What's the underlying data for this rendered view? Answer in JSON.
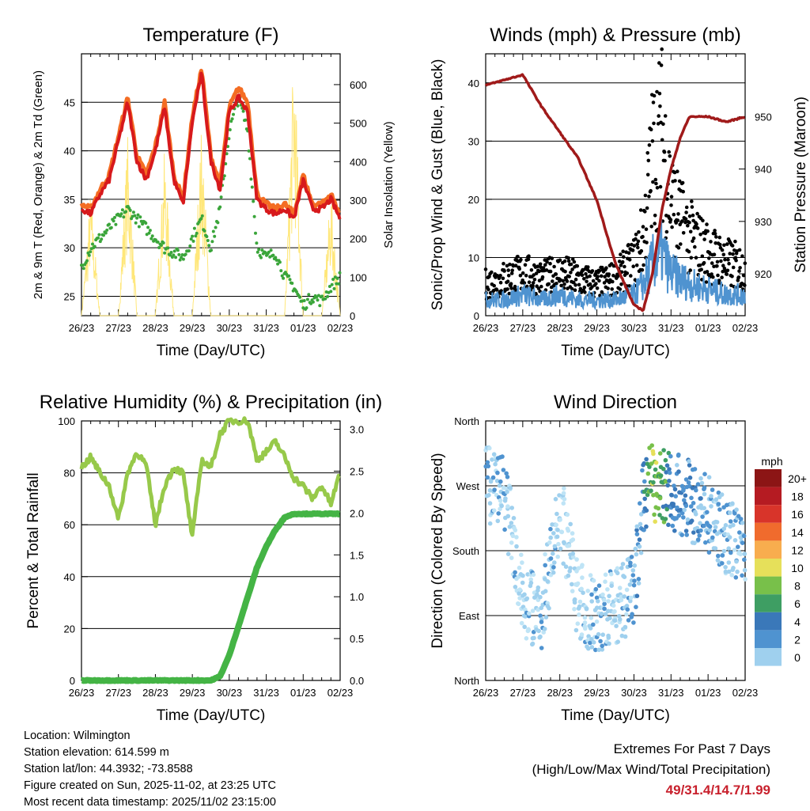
{
  "x_tick_labels": [
    "26/23",
    "27/23",
    "28/23",
    "29/23",
    "30/23",
    "31/23",
    "01/23",
    "02/23"
  ],
  "colors": {
    "temp_2m": "#d7191c",
    "temp_9m": "#f46d23",
    "dewpoint": "#3aa53a",
    "solar": "#ffe77a",
    "gust": "#000000",
    "wind": "#4f93d0",
    "pressure": "#a01a1a",
    "rh": "#97c94a",
    "precip": "#44b445"
  },
  "chart_data": [
    {
      "type": "line",
      "title": "Temperature (F)",
      "xlabel": "Time (Day/UTC)",
      "ylabel": "2m & 9m T (Red, Orange) & 2m Td (Green)",
      "y2label": "Solar Insolation (Yellow)",
      "ylim": [
        23,
        50
      ],
      "y_ticks": [
        25,
        30,
        35,
        40,
        45
      ],
      "y2lim": [
        0,
        680
      ],
      "y2_ticks": [
        0,
        100,
        200,
        300,
        400,
        500,
        600
      ],
      "x": [
        0,
        0.25,
        0.5,
        0.75,
        1,
        1.25,
        1.5,
        1.75,
        2,
        2.25,
        2.5,
        2.75,
        3,
        3.25,
        3.5,
        3.75,
        4,
        4.25,
        4.5,
        4.75,
        5,
        5.25,
        5.5,
        5.75,
        6,
        6.25,
        6.5,
        6.75,
        7
      ],
      "series": [
        {
          "name": "2m T",
          "values": [
            34,
            33.5,
            35.5,
            37,
            41,
            45,
            39,
            37,
            40,
            44.5,
            37,
            34.5,
            43,
            48,
            39,
            36,
            44,
            45.5,
            44,
            35,
            34,
            33.5,
            34,
            33,
            37,
            34,
            34,
            35,
            33
          ]
        },
        {
          "name": "9m T",
          "values": [
            34.5,
            34,
            36,
            37.5,
            41.5,
            45.5,
            39.5,
            37.5,
            40.5,
            45,
            37.5,
            35,
            43.5,
            48.5,
            39.5,
            36.5,
            44.5,
            46.5,
            45,
            35.5,
            34.5,
            34,
            34.5,
            33.5,
            37.5,
            34.5,
            34.5,
            35.5,
            33.5
          ]
        },
        {
          "name": "2m Td",
          "values": [
            28,
            30,
            31,
            32,
            33,
            34,
            33,
            32,
            31,
            30,
            29.5,
            29,
            31,
            33,
            30,
            34,
            42,
            45.5,
            42,
            30,
            29,
            29.5,
            27,
            26,
            24,
            25,
            24.5,
            26,
            27
          ]
        },
        {
          "name": "Solar",
          "values": [
            0,
            300,
            0,
            0,
            0,
            430,
            0,
            0,
            0,
            400,
            0,
            0,
            0,
            460,
            0,
            0,
            0,
            0,
            0,
            0,
            0,
            0,
            0,
            650,
            0,
            0,
            0,
            300,
            0
          ]
        }
      ]
    },
    {
      "type": "line",
      "title": "Winds (mph) & Pressure (mb)",
      "xlabel": "Time (Day/UTC)",
      "ylabel": "Sonic/Prop Wind & Gust (Blue, Black)",
      "y2label": "Station Pressure (Maroon)",
      "ylim": [
        0,
        45
      ],
      "y_ticks": [
        0,
        10,
        20,
        30,
        40
      ],
      "y2lim": [
        912,
        962
      ],
      "y2_ticks": [
        920,
        930,
        940,
        950
      ],
      "x": [
        0,
        0.5,
        1,
        1.5,
        2,
        2.5,
        3,
        3.5,
        4,
        4.25,
        4.5,
        4.75,
        5,
        5.25,
        5.5,
        6,
        6.5,
        7
      ],
      "series": [
        {
          "name": "Gust",
          "values": [
            6,
            7,
            8,
            7,
            8,
            7,
            6,
            7,
            10,
            15,
            30,
            35,
            22,
            18,
            15,
            12,
            10,
            9
          ]
        },
        {
          "name": "Wind",
          "values": [
            3,
            3,
            4,
            3,
            4,
            3,
            3,
            3,
            4,
            6,
            10,
            12,
            8,
            7,
            6,
            5,
            4,
            4
          ]
        },
        {
          "name": "Pressure",
          "values": [
            956,
            957,
            958,
            952,
            947,
            942,
            934,
            922,
            914,
            913,
            920,
            932,
            940,
            946,
            950,
            950,
            949,
            950
          ]
        }
      ]
    },
    {
      "type": "line",
      "title": "Relative Humidity (%) & Precipitation (in)",
      "xlabel": "Time (Day/UTC)",
      "ylabel": "Percent & Total Rainfall",
      "ylim": [
        0,
        100
      ],
      "y_ticks": [
        0,
        20,
        40,
        60,
        80,
        100
      ],
      "y2lim": [
        0,
        3.1
      ],
      "y2_ticks": [
        0.0,
        0.5,
        1.0,
        1.5,
        2.0,
        2.5,
        3.0
      ],
      "x": [
        0,
        0.25,
        0.5,
        0.75,
        1,
        1.25,
        1.5,
        1.75,
        2,
        2.25,
        2.5,
        2.75,
        3,
        3.25,
        3.5,
        3.75,
        4,
        4.25,
        4.5,
        4.75,
        5,
        5.25,
        5.5,
        5.75,
        6,
        6.25,
        6.5,
        6.75,
        7
      ],
      "series": [
        {
          "name": "RH",
          "values": [
            82,
            86,
            80,
            75,
            62,
            80,
            88,
            83,
            60,
            75,
            82,
            80,
            55,
            85,
            82,
            95,
            100,
            100,
            100,
            85,
            88,
            92,
            86,
            78,
            75,
            70,
            75,
            68,
            80
          ]
        },
        {
          "name": "Precip",
          "values": [
            0,
            0,
            0,
            0,
            0,
            0,
            0,
            0,
            0,
            0,
            0,
            0,
            0,
            0,
            0,
            0.05,
            0.3,
            0.65,
            1.0,
            1.35,
            1.6,
            1.8,
            1.95,
            1.99,
            1.99,
            1.99,
            1.99,
            1.99,
            1.99
          ]
        }
      ]
    },
    {
      "type": "scatter",
      "title": "Wind Direction",
      "xlabel": "Time (Day/UTC)",
      "ylabel": "Direction (Colored By Speed)",
      "y_tick_labels": [
        "North",
        "East",
        "South",
        "West",
        "North"
      ],
      "colorbar": {
        "title": "mph",
        "labels": [
          "0",
          "2",
          "4",
          "6",
          "8",
          "10",
          "12",
          "14",
          "16",
          "18",
          "20+"
        ],
        "colors": [
          "#bfe4f6",
          "#9fd0ee",
          "#4f93d0",
          "#3a78b9",
          "#3e9e63",
          "#78c04a",
          "#e6e05a",
          "#f8ad4e",
          "#f06b2d",
          "#d8342a",
          "#b51b22",
          "#8c1515"
        ]
      },
      "x": [
        0,
        0.5,
        1,
        1.5,
        2,
        2.5,
        3,
        3.5,
        4,
        4.25,
        4.5,
        4.75,
        5,
        5.5,
        6,
        6.5,
        7
      ],
      "direction_deg": [
        270,
        265,
        110,
        95,
        240,
        110,
        90,
        100,
        120,
        260,
        275,
        270,
        265,
        250,
        230,
        200,
        180
      ],
      "speed_mph": [
        3,
        3,
        2,
        3,
        2,
        2,
        3,
        2,
        4,
        6,
        12,
        10,
        6,
        5,
        4,
        3,
        3
      ]
    }
  ],
  "footer": {
    "location": "Location: Wilmington",
    "elevation": "Station elevation: 614.599 m",
    "latlon": "Station lat/lon: 44.3932; -73.8588",
    "created": "Figure created on Sun, 2025-11-02, at 23:25 UTC",
    "recent": "Most recent data timestamp: 2025/11/02 23:15:00"
  },
  "extremes": {
    "title": "Extremes For Past 7 Days",
    "subtitle": "(High/Low/Max Wind/Total Precipitation)",
    "value": "49/31.4/14.7/1.99"
  }
}
